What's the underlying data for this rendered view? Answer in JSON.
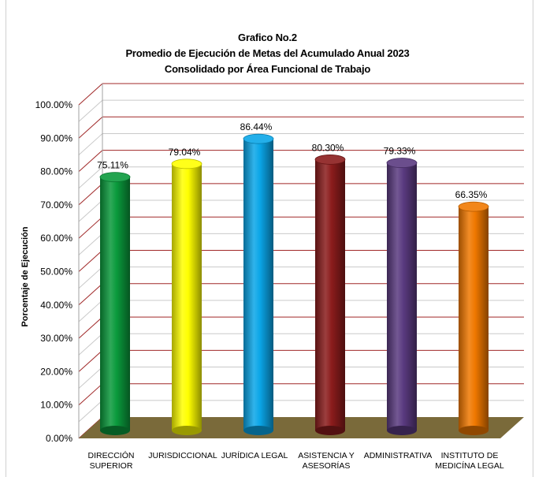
{
  "chart_data": {
    "type": "bar",
    "title": "Grafico No.2",
    "subtitle_lines": [
      "Promedio de Ejecución de Metas del Acumulado Anual 2023",
      "Consolidado por Área Funcional de Trabajo"
    ],
    "ylabel": "Porcentaje de Ejecución",
    "xlabel": "",
    "ylim": [
      0,
      100
    ],
    "yticks": [
      "0.00%",
      "10.00%",
      "20.00%",
      "30.00%",
      "40.00%",
      "50.00%",
      "60.00%",
      "70.00%",
      "80.00%",
      "90.00%",
      "100.00%"
    ],
    "categories": [
      [
        "DIRECCIÓN",
        "SUPERIOR"
      ],
      [
        "JURISDICCIONAL"
      ],
      [
        "JURÍDICA LEGAL"
      ],
      [
        "ASISTENCIA Y",
        "ASESORÍAS"
      ],
      [
        "ADMINISTRATIVA"
      ],
      [
        "INSTITUTO DE",
        "MEDICÍNA LEGAL"
      ]
    ],
    "values": [
      75.11,
      79.04,
      86.44,
      80.3,
      79.33,
      66.35
    ],
    "data_labels": [
      "75.11%",
      "79.04%",
      "86.44%",
      "80.30%",
      "79.33%",
      "66.35%"
    ],
    "colors": [
      "#0a9a3c",
      "#ffff00",
      "#0aa6e8",
      "#8b1c1c",
      "#5a3a80",
      "#f07800"
    ],
    "grid": true,
    "grid_color": "#a02828",
    "floor_color": "#7a6a3a",
    "bar_shape": "cylinder"
  }
}
